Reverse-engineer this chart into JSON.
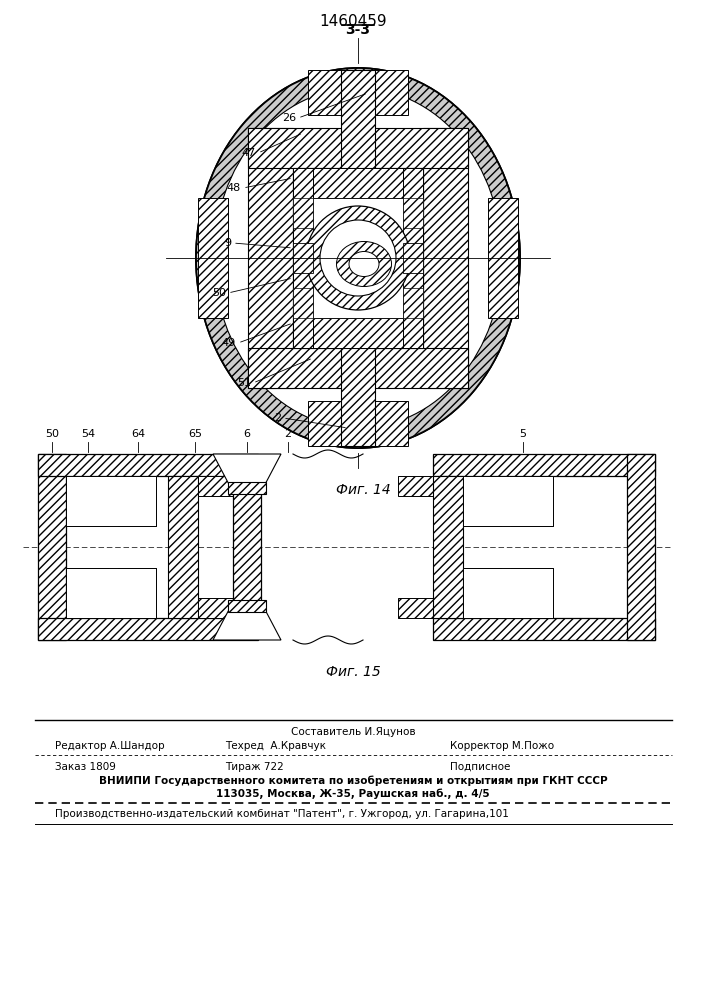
{
  "patent_number": "1460459",
  "fig14_label": "3-3",
  "fig14_caption": "Фиг. 14",
  "fig15_caption": "Фиг. 15",
  "footer_line1_center": "Составитель И.Яцунов",
  "footer_line2_left": "Редактор А.Шандор",
  "footer_line2_center": "Техред  А.Кравчук",
  "footer_line2_right": "Корректор М.Пожо",
  "footer_line3_left": "Заказ 1809",
  "footer_line3_center": "Тираж 722",
  "footer_line3_right": "Подписное",
  "footer_line4": "ВНИИПИ Государственного комитета по изобретениям и открытиям при ГКНТ СССР",
  "footer_line5": "113035, Москва, Ж-35, Раушская наб., д. 4/5",
  "footer_line6": "Производственно-издательский комбинат \"Патент\", г. Ужгород, ул. Гагарина,101",
  "bg_color": "#ffffff"
}
